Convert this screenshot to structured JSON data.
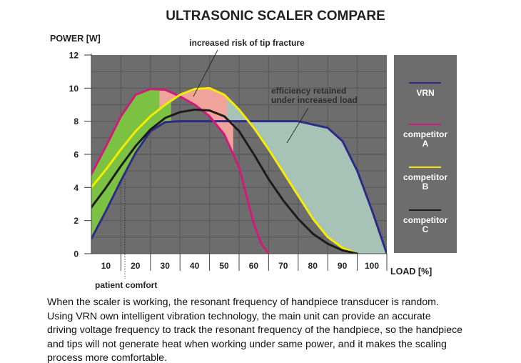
{
  "chart_data": {
    "type": "line",
    "title": "ULTRASONIC SCALER COMPARE",
    "ylabel": "POWER [W]",
    "xlabel": "LOAD [%]",
    "xlim": [
      0,
      100
    ],
    "ylim": [
      0,
      12
    ],
    "x_ticks": [
      10,
      20,
      30,
      40,
      50,
      60,
      70,
      80,
      90,
      100
    ],
    "y_ticks": [
      0,
      2,
      4,
      6,
      8,
      10,
      12
    ],
    "grid": true,
    "legend_position": "right",
    "colors": {
      "background": "#6d6d6d",
      "grid": "#5a5a5a",
      "legend_background": "#6d6d6d",
      "comfort_region": "#7cc242",
      "fracture_region": "#f0a39b",
      "efficiency_region": "#a7c2b7"
    },
    "series": [
      {
        "name": "VRN",
        "color": "#2c2c86",
        "x": [
          0,
          5,
          10,
          15,
          20,
          25,
          30,
          35,
          40,
          50,
          60,
          70,
          80,
          85,
          90,
          95,
          100
        ],
        "y": [
          0.9,
          2.6,
          4.4,
          6.1,
          7.4,
          7.95,
          8.0,
          8.0,
          8.0,
          8.0,
          8.0,
          8.0,
          7.6,
          6.8,
          5.0,
          2.6,
          0.0
        ]
      },
      {
        "name": "competitor A",
        "color": "#d11a7a",
        "x": [
          0,
          5,
          10,
          15,
          20,
          25,
          30,
          35,
          40,
          45,
          50,
          52.5,
          55,
          57.5,
          60
        ],
        "y": [
          4.8,
          6.5,
          8.3,
          9.6,
          9.95,
          9.9,
          9.5,
          9.0,
          8.3,
          7.2,
          5.2,
          3.5,
          1.8,
          0.6,
          0.0
        ]
      },
      {
        "name": "competitor B",
        "color": "#f5ec00",
        "x": [
          0,
          5,
          10,
          15,
          20,
          25,
          30,
          35,
          40,
          45,
          50,
          55,
          60,
          65,
          70,
          75,
          80,
          85,
          90
        ],
        "y": [
          4.0,
          5.1,
          6.3,
          7.4,
          8.3,
          9.0,
          9.6,
          9.95,
          10.0,
          9.6,
          8.7,
          7.6,
          6.3,
          4.9,
          3.5,
          2.1,
          1.0,
          0.35,
          0.0
        ]
      },
      {
        "name": "competitor C",
        "color": "#1c1c1c",
        "x": [
          0,
          5,
          10,
          15,
          20,
          25,
          30,
          35,
          40,
          45,
          50,
          55,
          60,
          65,
          70,
          75,
          80,
          85,
          90
        ],
        "y": [
          2.8,
          4.0,
          5.3,
          6.5,
          7.5,
          8.2,
          8.55,
          8.7,
          8.65,
          8.3,
          7.4,
          6.0,
          4.5,
          3.2,
          2.1,
          1.2,
          0.6,
          0.2,
          0.0
        ]
      }
    ],
    "annotations": [
      {
        "text": "increased risk of tip fracture"
      },
      {
        "text": "efficiency retained under increased load",
        "lines": [
          "efficiency retained",
          "under increased load"
        ]
      },
      {
        "text": "patient comfort"
      }
    ]
  },
  "description": "When the scaler is working, the resonant frequency of handpiece transducer is random. Using VRN own intelligent vibration technology, the main unit can provide an accurate driving voltage frequency to track the resonant frequency of the handpiece, so the handpiece and tips will not generate heat when working under same power, and it makes the scaling process more comfortable.",
  "description_lines": [
    "When the scaler is working, the resonant frequency of handpiece transducer is random.",
    "Using VRN own intelligent vibration technology, the main unit can provide an accurate",
    "driving voltage frequency to track the resonant frequency of the handpiece, so the handpiece",
    "and tips will not generate heat when working under same power, and it makes the scaling",
    "process more comfortable."
  ]
}
